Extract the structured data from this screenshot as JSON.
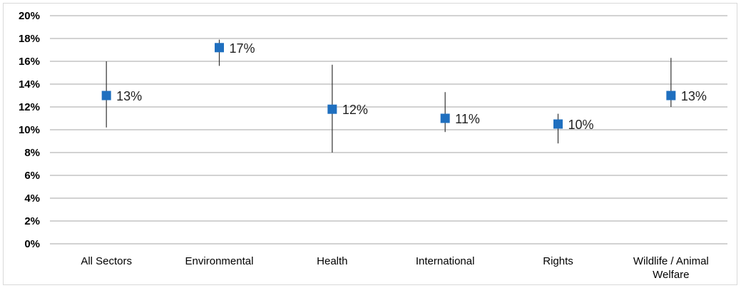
{
  "chart_data": {
    "type": "scatter",
    "categories": [
      "All Sectors",
      "Environmental",
      "Health",
      "International",
      "Rights",
      "Wildlife / Animal Welfare"
    ],
    "category_lines": [
      [
        "All Sectors"
      ],
      [
        "Environmental"
      ],
      [
        "Health"
      ],
      [
        "International"
      ],
      [
        "Rights"
      ],
      [
        "Wildlife / Animal",
        "Welfare"
      ]
    ],
    "series": [
      {
        "values": [
          0.13,
          0.172,
          0.118,
          0.11,
          0.105,
          0.13
        ],
        "labels": [
          "13%",
          "17%",
          "12%",
          "11%",
          "10%",
          "13%"
        ],
        "error_low": [
          0.102,
          0.156,
          0.08,
          0.098,
          0.088,
          0.12
        ],
        "error_high": [
          0.16,
          0.179,
          0.157,
          0.133,
          0.114,
          0.163
        ],
        "color": "#1f6fbf"
      }
    ],
    "ylim": [
      0,
      0.2
    ],
    "yticks": [
      "0%",
      "2%",
      "4%",
      "6%",
      "8%",
      "10%",
      "12%",
      "14%",
      "16%",
      "18%",
      "20%"
    ],
    "grid": true,
    "gridColor": "#a6a6a6",
    "errorColor": "#333333"
  }
}
